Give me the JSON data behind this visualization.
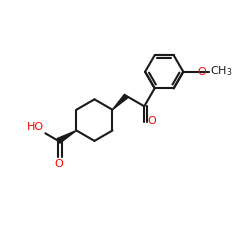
{
  "bg": "#ffffff",
  "bc": "#1a1a1a",
  "rc": "#ff0000",
  "lw": 1.5,
  "figsize": [
    2.5,
    2.5
  ],
  "dpi": 100,
  "xlim": [
    0.0,
    1.0
  ],
  "ylim": [
    0.18,
    0.82
  ]
}
